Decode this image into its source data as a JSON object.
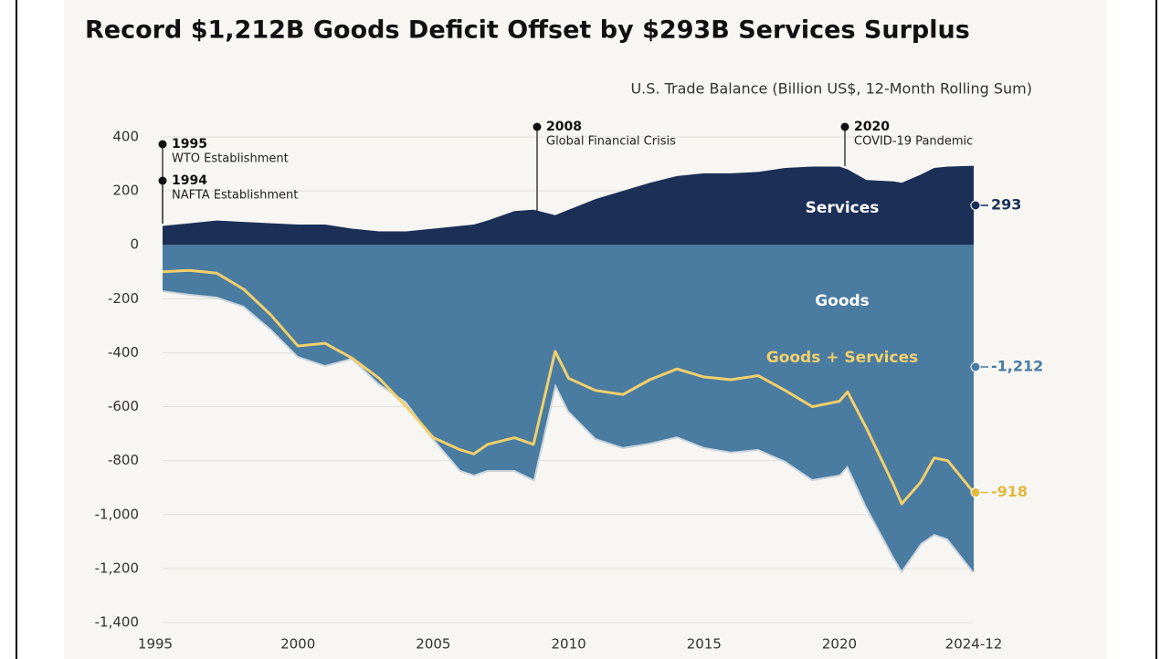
{
  "chart_data": {
    "type": "area",
    "title": "Record $1,212B Goods Deficit Offset by $293B Services Surplus",
    "subtitle": "U.S. Trade Balance (Billion US$, 12-Month Rolling Sum)",
    "x": [
      1995,
      1996,
      1997,
      1998,
      1999,
      2000,
      2001,
      2002,
      2003,
      2004,
      2005,
      2006,
      2006.5,
      2007,
      2008,
      2008.7,
      2009.5,
      2010,
      2011,
      2012,
      2013,
      2014,
      2015,
      2016,
      2017,
      2018,
      2019,
      2020,
      2020.3,
      2021,
      2022,
      2022.3,
      2023,
      2023.5,
      2024,
      2024.96
    ],
    "series": [
      {
        "name": "Services",
        "color": "#1b2f57",
        "values": [
          70,
          80,
          90,
          85,
          80,
          75,
          75,
          60,
          50,
          50,
          60,
          70,
          75,
          90,
          125,
          130,
          110,
          130,
          170,
          200,
          230,
          255,
          265,
          265,
          270,
          285,
          290,
          290,
          280,
          240,
          235,
          230,
          260,
          285,
          290,
          293
        ],
        "value_labels": [
          null,
          null,
          null,
          null,
          null,
          null,
          null,
          null,
          null,
          null,
          null,
          null,
          null,
          null,
          null,
          null,
          null,
          null,
          null,
          null,
          null,
          null,
          null,
          null,
          null,
          null,
          null,
          null,
          null,
          null,
          null,
          null,
          null,
          null,
          null,
          "293"
        ]
      },
      {
        "name": "Goods",
        "color": "#4a7ba0",
        "values": [
          -169,
          -182,
          -192,
          -226,
          -311,
          -412,
          -446,
          -419,
          -514,
          -581,
          -717,
          -835,
          -852,
          -835,
          -835,
          -869,
          -514,
          -615,
          -717,
          -750,
          -734,
          -710,
          -750,
          -767,
          -757,
          -801,
          -869,
          -852,
          -818,
          -970,
          -1156,
          -1207,
          -1106,
          -1072,
          -1089,
          -1212
        ],
        "value_labels": [
          null,
          null,
          null,
          null,
          null,
          null,
          null,
          null,
          null,
          null,
          null,
          null,
          null,
          null,
          null,
          null,
          null,
          null,
          null,
          null,
          null,
          null,
          null,
          null,
          null,
          null,
          null,
          null,
          null,
          null,
          null,
          null,
          null,
          null,
          null,
          "-1,212"
        ]
      },
      {
        "name": "Goods + Services",
        "color": "#f2d06b",
        "values": [
          -100,
          -95,
          -105,
          -165,
          -260,
          -375,
          -365,
          -420,
          -495,
          -600,
          -715,
          -760,
          -775,
          -740,
          -715,
          -740,
          -395,
          -495,
          -540,
          -555,
          -500,
          -460,
          -490,
          -500,
          -485,
          -540,
          -600,
          -580,
          -545,
          -680,
          -890,
          -960,
          -880,
          -790,
          -800,
          -918
        ],
        "value_labels": [
          null,
          null,
          null,
          null,
          null,
          null,
          null,
          null,
          null,
          null,
          null,
          null,
          null,
          null,
          null,
          null,
          null,
          null,
          null,
          null,
          null,
          null,
          null,
          null,
          null,
          null,
          null,
          null,
          null,
          null,
          null,
          null,
          null,
          null,
          null,
          "-918"
        ]
      }
    ],
    "xlim": [
      1995,
      2024.96
    ],
    "xticks": [
      1995,
      2000,
      2005,
      2010,
      2015,
      2020,
      {
        "value": 2024.96,
        "label": "2024-12"
      }
    ],
    "ylim": [
      -1400,
      400
    ],
    "yticks": [
      {
        "value": -1400,
        "label": "-1,400"
      },
      {
        "value": -1200,
        "label": "-1,200"
      },
      {
        "value": -1000,
        "label": "-1,000"
      },
      -800,
      -600,
      -400,
      -200,
      0,
      200,
      400
    ],
    "grid": true,
    "annotations": [
      {
        "year": "1995",
        "text": "WTO Establishment"
      },
      {
        "year": "1994",
        "text": "NAFTA Establishment"
      },
      {
        "year": "2008",
        "text": "Global Financial Crisis"
      },
      {
        "year": "2020",
        "text": "COVID-19 Pandemic"
      }
    ]
  }
}
